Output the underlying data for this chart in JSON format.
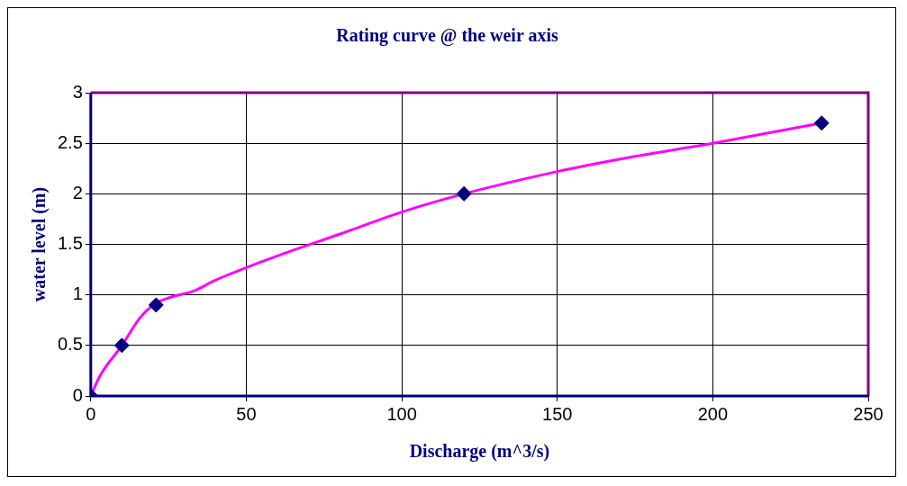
{
  "chart_data": {
    "type": "scatter",
    "title": "Rating curve @ the weir axis",
    "xlabel": "Discharge (m^3/s)",
    "ylabel": "water level (m)",
    "series": [
      {
        "type": "line",
        "color": "#ff00ff",
        "marker": "none",
        "x": [
          0,
          3,
          10,
          16,
          21,
          25,
          34,
          39,
          50,
          64,
          80,
          100,
          120,
          150,
          175,
          200,
          235
        ],
        "values": [
          0,
          0.2,
          0.5,
          0.78,
          0.92,
          0.97,
          1.05,
          1.13,
          1.27,
          1.43,
          1.6,
          1.82,
          2.0,
          2.22,
          2.37,
          2.5,
          2.7
        ]
      },
      {
        "type": "scatter",
        "color": "#000080",
        "marker": "diamond",
        "x": [
          0,
          10,
          21,
          120,
          235
        ],
        "values": [
          0,
          0.5,
          0.9,
          2.0,
          2.7
        ]
      }
    ],
    "xlim": [
      0,
      250
    ],
    "xticks": [
      0,
      50,
      100,
      150,
      200,
      250
    ],
    "ylim": [
      0,
      3
    ],
    "yticks": [
      0,
      0.5,
      1,
      1.5,
      2,
      2.5,
      3
    ],
    "grid": true,
    "legend": false
  }
}
